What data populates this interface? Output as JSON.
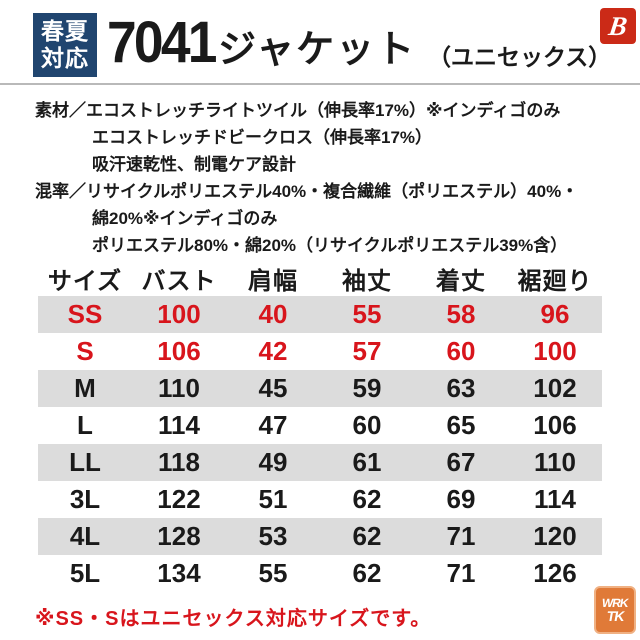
{
  "header": {
    "badge": {
      "line1": "春夏",
      "line2": "対応"
    },
    "product_code": "7041",
    "title": "ジャケット",
    "subtitle": "（ユニセックス）",
    "brand_letter": "B"
  },
  "specs": {
    "lines": [
      {
        "text": "素材／エコストレッチライトツイル（伸長率17%）※インディゴのみ",
        "indent": false
      },
      {
        "text": "エコストレッチドビークロス（伸長率17%）",
        "indent": true
      },
      {
        "text": "吸汗速乾性、制電ケア設計",
        "indent": true
      },
      {
        "text": "混率／リサイクルポリエステル40%・複合繊維（ポリエステル）40%・",
        "indent": false
      },
      {
        "text": "綿20%※インディゴのみ",
        "indent": true
      },
      {
        "text": "ポリエステル80%・綿20%（リサイクルポリエステル39%含）",
        "indent": true
      }
    ]
  },
  "table": {
    "columns": [
      "サイズ",
      "バスト",
      "肩幅",
      "袖丈",
      "着丈",
      "裾廻り"
    ],
    "rows": [
      {
        "size": "SS",
        "values": [
          "100",
          "40",
          "55",
          "58",
          "96"
        ],
        "accent": true
      },
      {
        "size": "S",
        "values": [
          "106",
          "42",
          "57",
          "60",
          "100"
        ],
        "accent": true
      },
      {
        "size": "M",
        "values": [
          "110",
          "45",
          "59",
          "63",
          "102"
        ],
        "accent": false
      },
      {
        "size": "L",
        "values": [
          "114",
          "47",
          "60",
          "65",
          "106"
        ],
        "accent": false
      },
      {
        "size": "LL",
        "values": [
          "118",
          "49",
          "61",
          "67",
          "110"
        ],
        "accent": false
      },
      {
        "size": "3L",
        "values": [
          "122",
          "51",
          "62",
          "69",
          "114"
        ],
        "accent": false
      },
      {
        "size": "4L",
        "values": [
          "128",
          "53",
          "62",
          "71",
          "120"
        ],
        "accent": false
      },
      {
        "size": "5L",
        "values": [
          "134",
          "55",
          "62",
          "71",
          "126"
        ],
        "accent": false
      }
    ]
  },
  "footer": {
    "note": "※SS・Sはユニセックス対応サイズです。"
  },
  "watermark": {
    "line1": "WRK",
    "line2": "TK"
  },
  "colors": {
    "accent_red": "#d8151c",
    "badge_navy": "#20456f",
    "row_gray": "#dcdcdc",
    "brand_red": "#cb2a17",
    "watermark_orange": "#e07a38"
  }
}
